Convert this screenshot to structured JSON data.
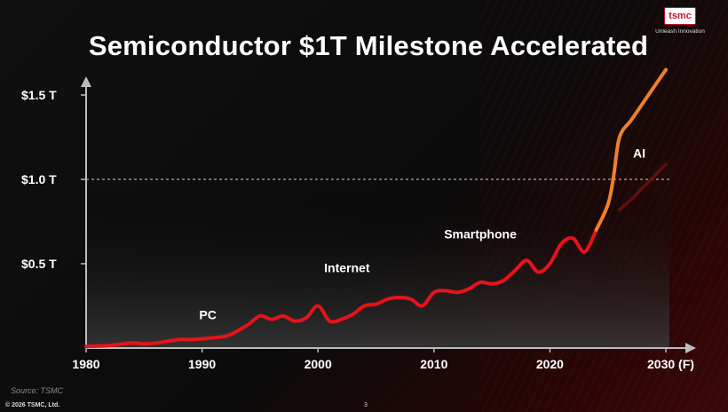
{
  "title": "Semiconductor $1T Milestone Accelerated",
  "logo": {
    "name": "tsmc",
    "tagline": "Unleash Innovation"
  },
  "footer": {
    "source": "Source: TSMC",
    "copyright": "© 2026 TSMC, Ltd.",
    "page": "3"
  },
  "colors": {
    "historic_line": "#e8121a",
    "forecast_line": "#f07f2a",
    "alt_forecast": "#6a1010",
    "axis": "#bdbdbd"
  },
  "chart_data": {
    "type": "line",
    "title": "Semiconductor $1T Milestone Accelerated",
    "xlim": [
      1980,
      2030
    ],
    "ylim": [
      0,
      1.6
    ],
    "yticks": [
      {
        "v": 0.5,
        "label": "$0.5 T"
      },
      {
        "v": 1.0,
        "label": "$1.0 T"
      },
      {
        "v": 1.5,
        "label": "$1.5 T"
      }
    ],
    "xticks": [
      {
        "v": 1980,
        "label": "1980"
      },
      {
        "v": 1990,
        "label": "1990"
      },
      {
        "v": 2000,
        "label": "2000"
      },
      {
        "v": 2010,
        "label": "2010"
      },
      {
        "v": 2020,
        "label": "2020"
      },
      {
        "v": 2030,
        "label": "2030 (F)"
      }
    ],
    "reference_line": 1.0,
    "series": [
      {
        "name": "historic",
        "x": [
          1980,
          1982,
          1984,
          1985,
          1986,
          1988,
          1989,
          1990,
          1992,
          1993,
          1994,
          1995,
          1996,
          1997,
          1998,
          1999,
          2000,
          2001,
          2002,
          2003,
          2004,
          2005,
          2006,
          2007,
          2008,
          2009,
          2010,
          2011,
          2012,
          2013,
          2014,
          2015,
          2016,
          2017,
          2018,
          2019,
          2020,
          2021,
          2022,
          2023,
          2024
        ],
        "y": [
          0.01,
          0.015,
          0.03,
          0.025,
          0.03,
          0.05,
          0.05,
          0.055,
          0.07,
          0.1,
          0.14,
          0.19,
          0.17,
          0.19,
          0.16,
          0.18,
          0.25,
          0.16,
          0.17,
          0.2,
          0.25,
          0.26,
          0.29,
          0.3,
          0.29,
          0.25,
          0.33,
          0.34,
          0.33,
          0.35,
          0.39,
          0.38,
          0.4,
          0.46,
          0.52,
          0.45,
          0.5,
          0.62,
          0.65,
          0.57,
          0.7
        ]
      },
      {
        "name": "forecast",
        "x": [
          2024,
          2025,
          2025.5,
          2026,
          2027,
          2028,
          2029,
          2030
        ],
        "y": [
          0.7,
          0.85,
          1.02,
          1.25,
          1.35,
          1.45,
          1.55,
          1.65
        ]
      },
      {
        "name": "alternate",
        "x": [
          2026,
          2027,
          2028,
          2029,
          2030
        ],
        "y": [
          0.82,
          0.88,
          0.95,
          1.02,
          1.09
        ]
      }
    ],
    "annotations": [
      {
        "text": "PC",
        "x": 1990.5,
        "y": 0.17
      },
      {
        "text": "Internet",
        "x": 2002.5,
        "y": 0.45
      },
      {
        "text": "Smartphone",
        "x": 2014,
        "y": 0.65
      },
      {
        "text": "AI",
        "x": 2027.7,
        "y": 1.13
      }
    ]
  }
}
